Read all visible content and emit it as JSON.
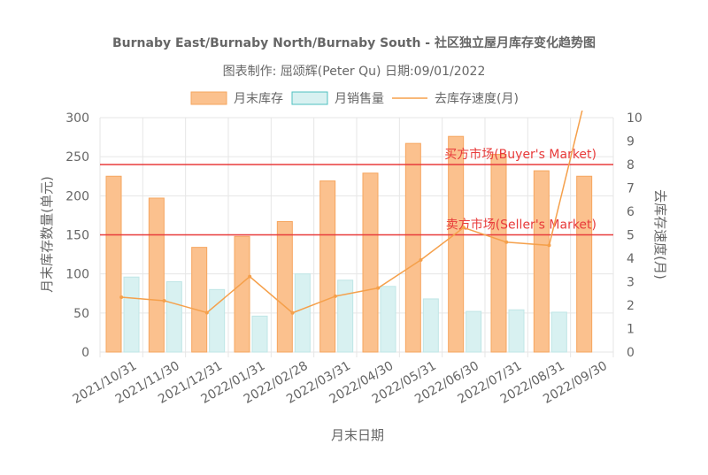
{
  "chart_data": {
    "type": "bar",
    "title": "Burnaby East/Burnaby North/Burnaby South - 社区独立屋月库存变化趋势图",
    "subtitle": "图表制作: 屈颂辉(Peter Qu) 日期:09/01/2022",
    "xlabel": "月末日期",
    "ylabel_left": "月末库存数量(单元)",
    "ylabel_right": "去库存速度(月)",
    "ylim_left": [
      0,
      300
    ],
    "ylim_right": [
      0,
      10
    ],
    "yticks_left": [
      "0",
      "50",
      "100",
      "150",
      "200",
      "250",
      "300"
    ],
    "yticks_right": [
      "0",
      "1",
      "2",
      "3",
      "4",
      "5",
      "6",
      "7",
      "8",
      "9",
      "10"
    ],
    "grid": true,
    "legend_position": "top",
    "categories": [
      "2021/10/31",
      "2021/11/30",
      "2021/12/31",
      "2022/01/31",
      "2022/02/28",
      "2022/03/31",
      "2022/04/30",
      "2022/05/31",
      "2022/06/30",
      "2022/07/31",
      "2022/08/31",
      "2022/09/30"
    ],
    "series": [
      {
        "name": "月末库存",
        "type": "bar",
        "axis": "left",
        "color": "#fbc18e",
        "border": "#f6a65f",
        "values": [
          225,
          197,
          134,
          148,
          167,
          219,
          229,
          267,
          276,
          253,
          232,
          225
        ]
      },
      {
        "name": "月销售量",
        "type": "bar",
        "axis": "left",
        "color": "#d8f1f1",
        "border": "#bfe6e6",
        "values": [
          96,
          90,
          80,
          46,
          100,
          92,
          84,
          68,
          52,
          54,
          51,
          0
        ]
      },
      {
        "name": "去库存速度(月)",
        "type": "line",
        "axis": "right",
        "color": "#f5a04b",
        "values": [
          2.34,
          2.19,
          1.68,
          3.22,
          1.67,
          2.38,
          2.73,
          3.93,
          5.31,
          4.69,
          4.55,
          12
        ]
      }
    ],
    "reference_lines": [
      {
        "label": "买方市场(Buyer's Market)",
        "y_right": 8,
        "color": "#e83b3b"
      },
      {
        "label": "卖方市场(Seller's Market)",
        "y_right": 5,
        "color": "#e83b3b"
      }
    ]
  }
}
